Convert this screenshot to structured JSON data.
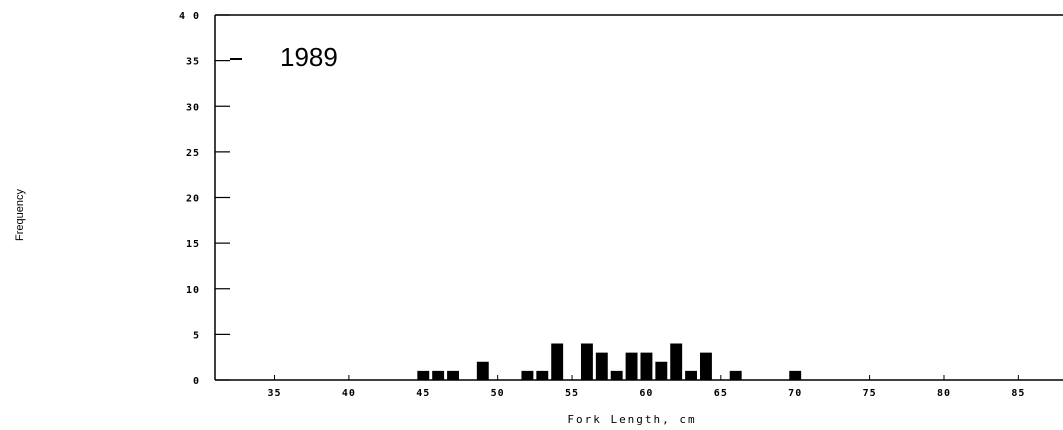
{
  "chart_data": {
    "type": "bar",
    "xlabel": "Fork Length, cm",
    "ylabel": "Frequency",
    "legend": "1989",
    "xlim": [
      31,
      88
    ],
    "ylim": [
      0,
      40
    ],
    "x_ticks": [
      35,
      40,
      45,
      50,
      55,
      60,
      65,
      70,
      75,
      80,
      85
    ],
    "y_ticks": [
      0,
      5,
      10,
      15,
      20,
      25,
      30,
      35,
      40
    ],
    "y_tick_labels": [
      "0",
      "5",
      "10",
      "15",
      "20",
      "25",
      "30",
      "35",
      "4 0"
    ],
    "bars": [
      {
        "x": 45,
        "y": 1
      },
      {
        "x": 46,
        "y": 1
      },
      {
        "x": 47,
        "y": 1
      },
      {
        "x": 49,
        "y": 2
      },
      {
        "x": 52,
        "y": 1
      },
      {
        "x": 53,
        "y": 1
      },
      {
        "x": 54,
        "y": 4
      },
      {
        "x": 56,
        "y": 4
      },
      {
        "x": 57,
        "y": 3
      },
      {
        "x": 58,
        "y": 1
      },
      {
        "x": 59,
        "y": 3
      },
      {
        "x": 60,
        "y": 3
      },
      {
        "x": 61,
        "y": 2
      },
      {
        "x": 62,
        "y": 4
      },
      {
        "x": 63,
        "y": 1
      },
      {
        "x": 64,
        "y": 3
      },
      {
        "x": 66,
        "y": 1
      },
      {
        "x": 70,
        "y": 1
      }
    ]
  }
}
